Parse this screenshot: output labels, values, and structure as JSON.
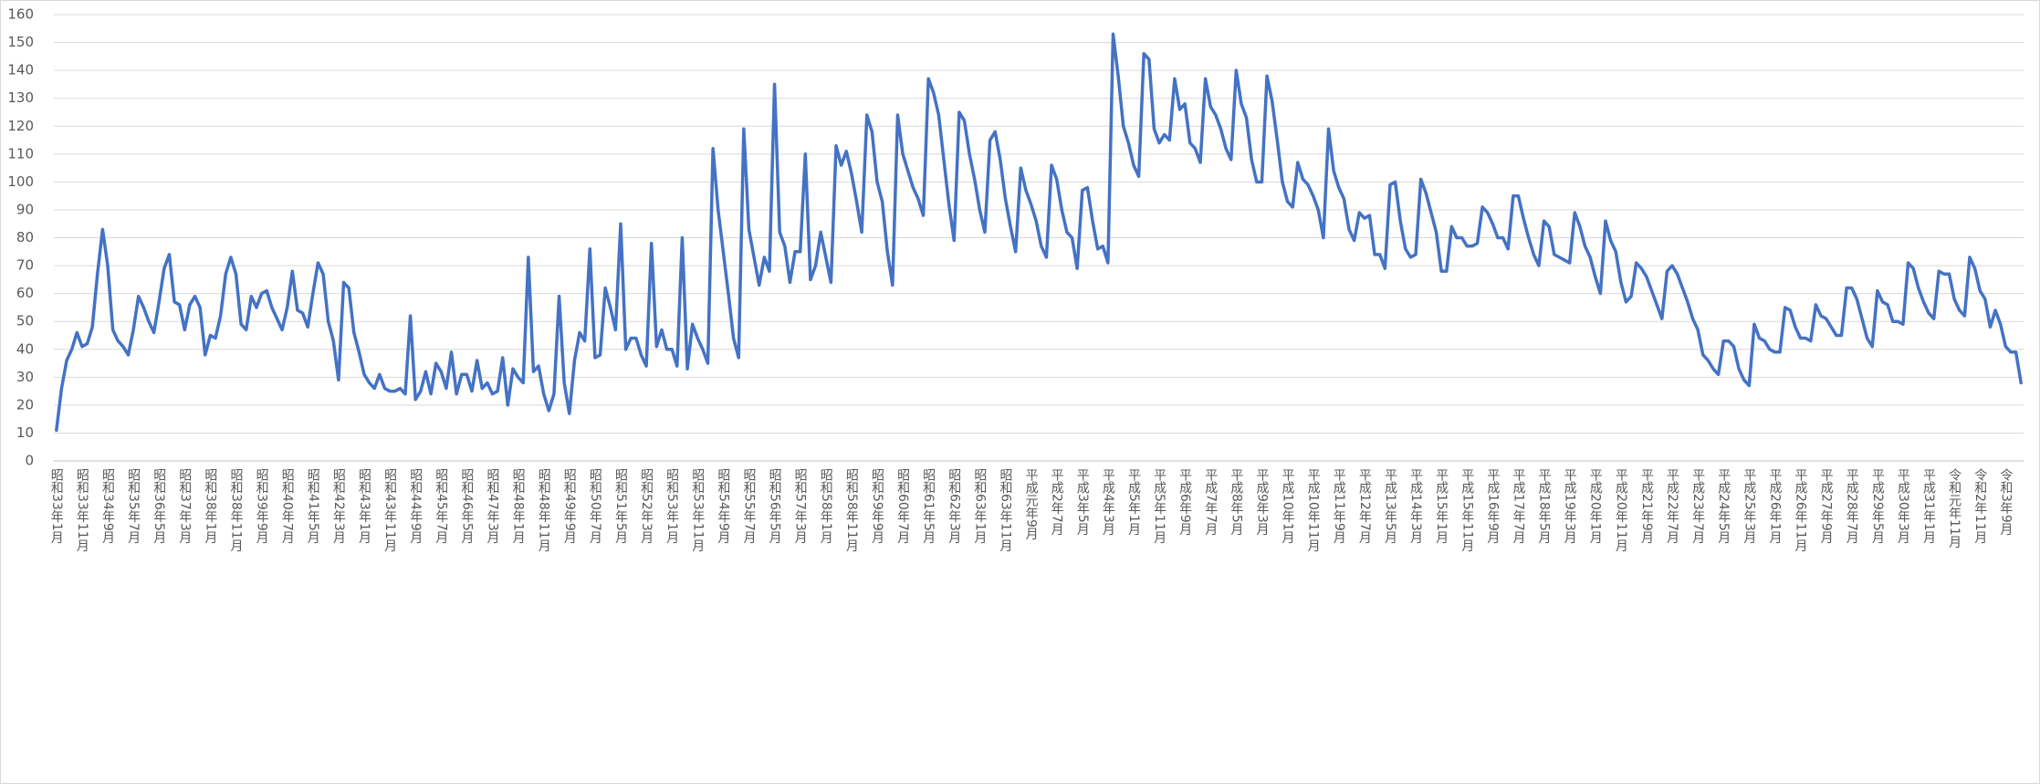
{
  "chart_data": {
    "type": "line",
    "categories": [
      "昭和33年1月",
      null,
      null,
      null,
      null,
      "昭和33年11月",
      null,
      null,
      null,
      null,
      "昭和34年9月",
      null,
      null,
      null,
      null,
      "昭和35年7月",
      null,
      null,
      null,
      null,
      "昭和36年5月",
      null,
      null,
      null,
      null,
      "昭和37年3月",
      null,
      null,
      null,
      null,
      "昭和38年1月",
      null,
      null,
      null,
      null,
      "昭和38年11月",
      null,
      null,
      null,
      null,
      "昭和39年9月",
      null,
      null,
      null,
      null,
      "昭和40年7月",
      null,
      null,
      null,
      null,
      "昭和41年5月",
      null,
      null,
      null,
      null,
      "昭和42年3月",
      null,
      null,
      null,
      null,
      "昭和43年1月",
      null,
      null,
      null,
      null,
      "昭和43年11月",
      null,
      null,
      null,
      null,
      "昭和44年9月",
      null,
      null,
      null,
      null,
      "昭和45年7月",
      null,
      null,
      null,
      null,
      "昭和46年5月",
      null,
      null,
      null,
      null,
      "昭和47年3月",
      null,
      null,
      null,
      null,
      "昭和48年1月",
      null,
      null,
      null,
      null,
      "昭和48年11月",
      null,
      null,
      null,
      null,
      "昭和49年9月",
      null,
      null,
      null,
      null,
      "昭和50年7月",
      null,
      null,
      null,
      null,
      "昭和51年5月",
      null,
      null,
      null,
      null,
      "昭和52年3月",
      null,
      null,
      null,
      null,
      "昭和53年1月",
      null,
      null,
      null,
      null,
      "昭和53年11月",
      null,
      null,
      null,
      null,
      "昭和54年9月",
      null,
      null,
      null,
      null,
      "昭和55年7月",
      null,
      null,
      null,
      null,
      "昭和56年5月",
      null,
      null,
      null,
      null,
      "昭和57年3月",
      null,
      null,
      null,
      null,
      "昭和58年1月",
      null,
      null,
      null,
      null,
      "昭和58年11月",
      null,
      null,
      null,
      null,
      "昭和59年9月",
      null,
      null,
      null,
      null,
      "昭和60年7月",
      null,
      null,
      null,
      null,
      "昭和61年5月",
      null,
      null,
      null,
      null,
      "昭和62年3月",
      null,
      null,
      null,
      null,
      "昭和63年1月",
      null,
      null,
      null,
      null,
      "昭和63年11月",
      null,
      null,
      null,
      null,
      "平成元年9月",
      null,
      null,
      null,
      null,
      "平成2年7月",
      null,
      null,
      null,
      null,
      "平成3年5月",
      null,
      null,
      null,
      null,
      "平成4年3月",
      null,
      null,
      null,
      null,
      "平成5年1月",
      null,
      null,
      null,
      null,
      "平成5年11月",
      null,
      null,
      null,
      null,
      "平成6年9月",
      null,
      null,
      null,
      null,
      "平成7年7月",
      null,
      null,
      null,
      null,
      "平成8年5月",
      null,
      null,
      null,
      null,
      "平成9年3月",
      null,
      null,
      null,
      null,
      "平成10年1月",
      null,
      null,
      null,
      null,
      "平成10年11月",
      null,
      null,
      null,
      null,
      "平成11年9月",
      null,
      null,
      null,
      null,
      "平成12年7月",
      null,
      null,
      null,
      null,
      "平成13年5月",
      null,
      null,
      null,
      null,
      "平成14年3月",
      null,
      null,
      null,
      null,
      "平成15年1月",
      null,
      null,
      null,
      null,
      "平成15年11月",
      null,
      null,
      null,
      null,
      "平成16年9月",
      null,
      null,
      null,
      null,
      "平成17年7月",
      null,
      null,
      null,
      null,
      "平成18年5月",
      null,
      null,
      null,
      null,
      "平成19年3月",
      null,
      null,
      null,
      null,
      "平成20年1月",
      null,
      null,
      null,
      null,
      "平成20年11月",
      null,
      null,
      null,
      null,
      "平成21年9月",
      null,
      null,
      null,
      null,
      "平成22年7月",
      null,
      null,
      null,
      null,
      "平成23年7月",
      null,
      null,
      null,
      null,
      "平成24年5月",
      null,
      null,
      null,
      null,
      "平成25年3月",
      null,
      null,
      null,
      null,
      "平成26年1月",
      null,
      null,
      null,
      null,
      "平成26年11月",
      null,
      null,
      null,
      null,
      "平成27年9月",
      null,
      null,
      null,
      null,
      "平成28年7月",
      null,
      null,
      null,
      null,
      "平成29年5月",
      null,
      null,
      null,
      null,
      "平成30年3月",
      null,
      null,
      null,
      null,
      "平成31年1月",
      null,
      null,
      null,
      null,
      "令和元年11月",
      null,
      null,
      null,
      null,
      "令和2年11月",
      null,
      null,
      null,
      null,
      "令和3年9月",
      null,
      null,
      null
    ],
    "values": [
      11,
      26,
      36,
      40,
      46,
      41,
      42,
      48,
      67,
      83,
      70,
      47,
      43,
      41,
      38,
      47,
      59,
      55,
      50,
      46,
      57,
      69,
      74,
      57,
      56,
      47,
      56,
      59,
      55,
      38,
      45,
      44,
      52,
      67,
      73,
      67,
      49,
      47,
      59,
      55,
      60,
      61,
      55,
      51,
      47,
      55,
      68,
      54,
      53,
      48,
      60,
      71,
      67,
      50,
      43,
      29,
      64,
      62,
      46,
      39,
      31,
      28,
      26,
      31,
      26,
      25,
      25,
      26,
      24,
      52,
      22,
      25,
      32,
      24,
      35,
      32,
      26,
      39,
      24,
      31,
      31,
      25,
      36,
      26,
      28,
      24,
      25,
      37,
      20,
      33,
      30,
      28,
      73,
      32,
      34,
      24,
      18,
      24,
      59,
      28,
      17,
      36,
      46,
      43,
      76,
      37,
      38,
      62,
      55,
      47,
      85,
      40,
      44,
      44,
      38,
      34,
      78,
      41,
      47,
      40,
      40,
      34,
      80,
      33,
      49,
      44,
      40,
      35,
      112,
      90,
      75,
      60,
      44,
      37,
      119,
      83,
      73,
      63,
      73,
      68,
      135,
      82,
      77,
      64,
      75,
      75,
      110,
      65,
      70,
      82,
      73,
      64,
      113,
      106,
      111,
      103,
      93,
      82,
      124,
      118,
      100,
      93,
      75,
      63,
      124,
      110,
      104,
      98,
      94,
      88,
      137,
      132,
      124,
      108,
      92,
      79,
      125,
      122,
      110,
      101,
      90,
      82,
      115,
      118,
      108,
      94,
      84,
      75,
      105,
      97,
      92,
      86,
      77,
      73,
      106,
      101,
      90,
      82,
      80,
      69,
      97,
      98,
      86,
      76,
      77,
      71,
      153,
      138,
      120,
      114,
      106,
      102,
      146,
      144,
      119,
      114,
      117,
      115,
      137,
      126,
      128,
      114,
      112,
      107,
      137,
      127,
      124,
      119,
      112,
      108,
      140,
      128,
      123,
      108,
      100,
      100,
      138,
      129,
      115,
      100,
      93,
      91,
      107,
      101,
      99,
      95,
      90,
      80,
      119,
      104,
      98,
      94,
      83,
      79,
      89,
      87,
      88,
      74,
      74,
      69,
      99,
      100,
      86,
      76,
      73,
      74,
      101,
      96,
      89,
      82,
      68,
      68,
      84,
      80,
      80,
      77,
      77,
      78,
      91,
      89,
      85,
      80,
      80,
      76,
      95,
      95,
      87,
      80,
      74,
      70,
      86,
      84,
      74,
      73,
      72,
      71,
      89,
      84,
      77,
      73,
      66,
      60,
      86,
      79,
      75,
      64,
      57,
      59,
      71,
      69,
      66,
      61,
      56,
      51,
      68,
      70,
      67,
      62,
      57,
      51,
      47,
      38,
      36,
      33,
      31,
      43,
      43,
      41,
      33,
      29,
      27,
      49,
      44,
      43,
      40,
      39,
      39,
      55,
      54,
      48,
      44,
      44,
      43,
      56,
      52,
      51,
      48,
      45,
      45,
      62,
      62,
      58,
      51,
      44,
      41,
      61,
      57,
      56,
      50,
      50,
      49,
      71,
      69,
      62,
      57,
      53,
      51,
      68,
      67,
      67,
      58,
      54,
      52,
      73,
      69,
      61,
      58,
      48,
      54,
      49,
      41,
      39,
      39,
      28
    ],
    "color": "#4472c4",
    "ylim": [
      0,
      160
    ],
    "yticks": [
      0,
      10,
      20,
      30,
      40,
      50,
      60,
      70,
      80,
      90,
      100,
      110,
      120,
      130,
      140,
      150,
      160
    ],
    "grid": true
  }
}
